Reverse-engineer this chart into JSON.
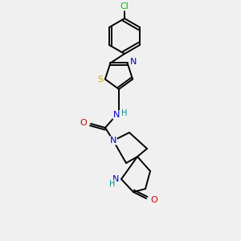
{
  "background_color": "#f0f0f0",
  "bond_color": "#000000",
  "atom_colors": {
    "Cl": "#00bb00",
    "S": "#ccaa00",
    "N": "#0000cc",
    "O": "#cc0000",
    "H": "#008888",
    "C": "#000000"
  }
}
